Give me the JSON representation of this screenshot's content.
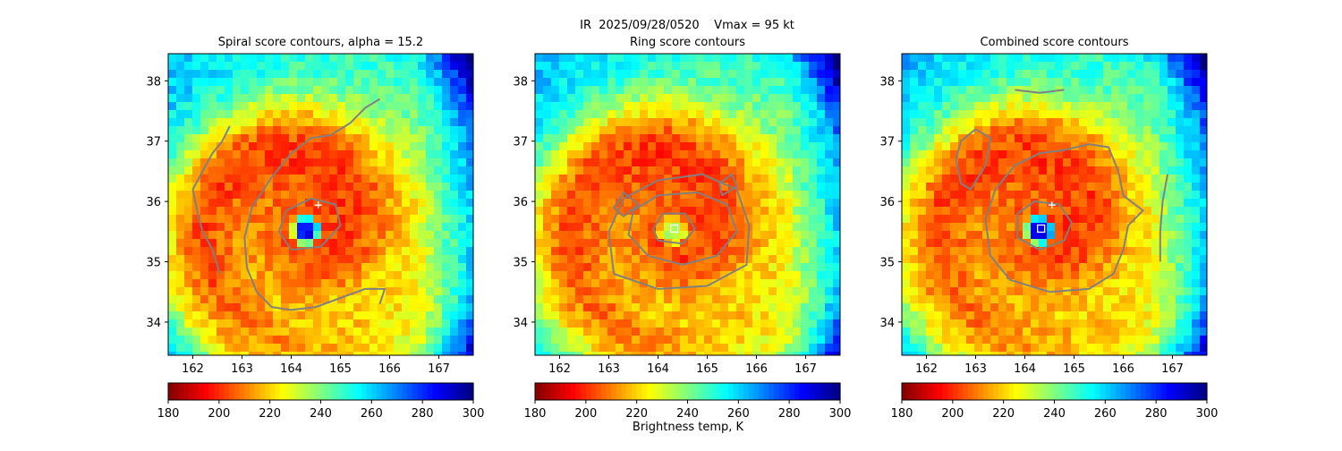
{
  "figure": {
    "suptitle": "IR  2025/09/28/0520    Vmax = 95 kt",
    "colorbar_label": "Brightness temp, K"
  },
  "colors": {
    "contour": "#808080",
    "center_marker": "#ffffff",
    "jet": [
      "#800000",
      "#ff0000",
      "#ff8000",
      "#ffff00",
      "#80ff80",
      "#00ffff",
      "#0080ff",
      "#0000ff",
      "#000080"
    ],
    "cloud_top_reversed": true
  },
  "icons": {
    "best_track": "plus-marker-icon",
    "detected_center": "square-marker-icon"
  },
  "chart_data": [
    {
      "type": "heatmap",
      "title": "Spiral score contours, alpha = 15.2",
      "xlabel": "",
      "ylabel": "",
      "xlim": [
        161.5,
        167.7
      ],
      "ylim": [
        33.45,
        38.45
      ],
      "xticks": [
        162,
        163,
        164,
        165,
        166,
        167
      ],
      "yticks": [
        34,
        35,
        36,
        37,
        38
      ],
      "colorbar": {
        "vmin": 180,
        "vmax": 300,
        "ticks": [
          180,
          200,
          220,
          240,
          260,
          280,
          300
        ],
        "cmap": "jet_r"
      },
      "field": {
        "eye_lon": 164.3,
        "eye_lat": 35.52,
        "eye_temp": 282,
        "core_temp": 205,
        "outer_temp": 262
      },
      "markers": [
        {
          "kind": "plus",
          "lon": 164.55,
          "lat": 35.94
        }
      ],
      "contours": [
        [
          [
            164.0,
            35.2
          ],
          [
            164.6,
            35.25
          ],
          [
            165.0,
            35.6
          ],
          [
            164.9,
            35.95
          ],
          [
            164.4,
            36.05
          ],
          [
            163.9,
            35.85
          ],
          [
            163.75,
            35.5
          ],
          [
            164.0,
            35.2
          ]
        ],
        [
          [
            162.75,
            37.25
          ],
          [
            162.6,
            37.0
          ],
          [
            162.4,
            36.8
          ],
          [
            162.2,
            36.5
          ],
          [
            162.0,
            36.2
          ],
          [
            162.1,
            35.8
          ],
          [
            162.2,
            35.5
          ],
          [
            162.4,
            35.2
          ],
          [
            162.55,
            34.8
          ]
        ],
        [
          [
            165.8,
            34.3
          ],
          [
            165.9,
            34.55
          ],
          [
            165.5,
            34.55
          ],
          [
            165.0,
            34.4
          ],
          [
            164.5,
            34.25
          ],
          [
            164.0,
            34.2
          ],
          [
            163.6,
            34.25
          ],
          [
            163.3,
            34.5
          ],
          [
            163.1,
            34.9
          ],
          [
            163.05,
            35.4
          ],
          [
            163.2,
            35.9
          ],
          [
            163.6,
            36.4
          ],
          [
            164.0,
            36.8
          ],
          [
            164.4,
            37.05
          ],
          [
            164.8,
            37.1
          ],
          [
            165.2,
            37.3
          ],
          [
            165.5,
            37.55
          ],
          [
            165.8,
            37.7
          ]
        ]
      ]
    },
    {
      "type": "heatmap",
      "title": "Ring score contours",
      "xlabel": "",
      "ylabel": "",
      "xlim": [
        161.5,
        167.7
      ],
      "ylim": [
        33.45,
        38.45
      ],
      "xticks": [
        162,
        163,
        164,
        165,
        166,
        167
      ],
      "yticks": [
        34,
        35,
        36,
        37,
        38
      ],
      "colorbar": {
        "vmin": 180,
        "vmax": 300,
        "ticks": [
          180,
          200,
          220,
          240,
          260,
          280,
          300
        ],
        "cmap": "jet_r"
      },
      "field": {
        "eye_lon": 164.3,
        "eye_lat": 35.52,
        "eye_temp": 232,
        "core_temp": 205,
        "outer_temp": 262
      },
      "markers": [
        {
          "kind": "square",
          "lon": 164.33,
          "lat": 35.55
        }
      ],
      "contours": [
        [
          [
            163.8,
            35.1
          ],
          [
            164.5,
            34.95
          ],
          [
            165.2,
            35.1
          ],
          [
            165.6,
            35.5
          ],
          [
            165.4,
            35.95
          ],
          [
            164.8,
            36.15
          ],
          [
            164.0,
            36.1
          ],
          [
            163.5,
            35.85
          ],
          [
            163.4,
            35.45
          ],
          [
            163.8,
            35.1
          ]
        ],
        [
          [
            163.1,
            34.8
          ],
          [
            164.0,
            34.55
          ],
          [
            165.0,
            34.6
          ],
          [
            165.8,
            34.95
          ],
          [
            165.85,
            35.6
          ],
          [
            165.6,
            36.2
          ],
          [
            164.9,
            36.45
          ],
          [
            164.0,
            36.35
          ],
          [
            163.3,
            36.05
          ],
          [
            163.0,
            35.5
          ],
          [
            163.1,
            34.8
          ]
        ],
        [
          [
            164.0,
            35.35
          ],
          [
            164.5,
            35.3
          ],
          [
            164.75,
            35.55
          ],
          [
            164.55,
            35.8
          ],
          [
            164.1,
            35.8
          ],
          [
            163.9,
            35.55
          ],
          [
            164.0,
            35.35
          ]
        ],
        [
          [
            163.3,
            35.75
          ],
          [
            163.6,
            35.95
          ],
          [
            163.3,
            36.15
          ],
          [
            163.1,
            35.9
          ],
          [
            163.3,
            35.75
          ]
        ],
        [
          [
            165.3,
            36.1
          ],
          [
            165.6,
            36.25
          ],
          [
            165.5,
            36.45
          ],
          [
            165.25,
            36.3
          ],
          [
            165.3,
            36.1
          ]
        ]
      ]
    },
    {
      "type": "heatmap",
      "title": "Combined score contours",
      "xlabel": "",
      "ylabel": "",
      "xlim": [
        161.5,
        167.7
      ],
      "ylim": [
        33.45,
        38.45
      ],
      "xticks": [
        162,
        163,
        164,
        165,
        166,
        167
      ],
      "yticks": [
        34,
        35,
        36,
        37,
        38
      ],
      "colorbar": {
        "vmin": 180,
        "vmax": 300,
        "ticks": [
          180,
          200,
          220,
          240,
          260,
          280,
          300
        ],
        "cmap": "jet_r"
      },
      "field": {
        "eye_lon": 164.3,
        "eye_lat": 35.52,
        "eye_temp": 292,
        "core_temp": 205,
        "outer_temp": 262
      },
      "markers": [
        {
          "kind": "plus",
          "lon": 164.55,
          "lat": 35.94
        },
        {
          "kind": "square",
          "lon": 164.33,
          "lat": 35.55
        }
      ],
      "contours": [
        [
          [
            164.3,
            35.2
          ],
          [
            164.8,
            35.35
          ],
          [
            164.95,
            35.65
          ],
          [
            164.7,
            35.95
          ],
          [
            164.2,
            36.0
          ],
          [
            163.85,
            35.8
          ],
          [
            163.85,
            35.4
          ],
          [
            164.3,
            35.2
          ]
        ],
        [
          [
            163.0,
            37.2
          ],
          [
            163.3,
            37.05
          ],
          [
            163.2,
            36.6
          ],
          [
            162.9,
            36.2
          ],
          [
            162.7,
            36.3
          ],
          [
            162.6,
            36.7
          ],
          [
            162.7,
            37.0
          ],
          [
            163.0,
            37.2
          ]
        ],
        [
          [
            164.5,
            34.5
          ],
          [
            165.3,
            34.55
          ],
          [
            165.8,
            34.8
          ],
          [
            166.0,
            35.2
          ],
          [
            166.1,
            35.6
          ],
          [
            166.4,
            35.85
          ],
          [
            166.0,
            36.1
          ],
          [
            165.9,
            36.5
          ],
          [
            165.7,
            36.9
          ],
          [
            165.3,
            36.95
          ],
          [
            164.8,
            36.85
          ],
          [
            164.3,
            36.8
          ],
          [
            163.8,
            36.6
          ],
          [
            163.4,
            36.2
          ],
          [
            163.2,
            35.7
          ],
          [
            163.3,
            35.1
          ],
          [
            163.7,
            34.7
          ],
          [
            164.5,
            34.5
          ]
        ],
        [
          [
            163.8,
            37.85
          ],
          [
            164.3,
            37.8
          ],
          [
            164.8,
            37.85
          ]
        ],
        [
          [
            166.9,
            36.45
          ],
          [
            166.8,
            36.0
          ],
          [
            166.75,
            35.5
          ],
          [
            166.75,
            35.0
          ]
        ]
      ]
    }
  ]
}
